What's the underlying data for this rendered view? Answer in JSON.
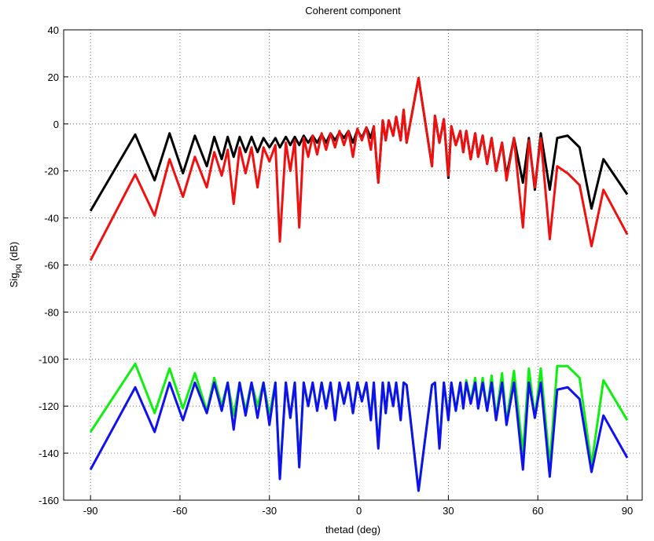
{
  "chart_data": {
    "type": "line",
    "title": "Coherent component",
    "xlabel": "thetad (deg)",
    "ylabel": {
      "text": "Sig",
      "sub": "pq",
      "unit": "(dB)"
    },
    "xlim": [
      -99,
      95
    ],
    "ylim": [
      -160,
      40
    ],
    "xticks": [
      -90,
      -60,
      -30,
      0,
      30,
      60,
      90
    ],
    "yticks": [
      -160,
      -140,
      -120,
      -100,
      -80,
      -60,
      -40,
      -20,
      0,
      20,
      40
    ],
    "grid": true,
    "x": [
      -90,
      -75,
      -68.5,
      -63.5,
      -59,
      -55,
      -51,
      -48.5,
      -46,
      -44,
      -42,
      -40,
      -38,
      -36,
      -34,
      -32,
      -30,
      -28,
      -26.5,
      -24.5,
      -23,
      -21.5,
      -20,
      -18.5,
      -17,
      -15.5,
      -14,
      -12.5,
      -11,
      -9.5,
      -8,
      -6.5,
      -5,
      -3.5,
      -2,
      -0.5,
      1,
      2.5,
      4,
      5,
      6.5,
      8,
      9,
      10,
      11.5,
      12.5,
      14,
      15,
      16,
      20,
      24.5,
      25.5,
      27,
      28.5,
      30,
      31,
      32.5,
      34,
      35,
      36,
      37.5,
      39,
      40,
      41.5,
      43,
      44.5,
      46,
      48,
      49.5,
      52,
      55,
      57,
      59,
      61,
      64,
      66.5,
      70,
      74,
      78,
      82,
      90
    ],
    "series": [
      {
        "color": "#000000",
        "values": [
          -37,
          -4.5,
          -24,
          -4,
          -21,
          -5,
          -18,
          -5.5,
          -15,
          -5.5,
          -14,
          -5.5,
          -12,
          -5.5,
          -12,
          -6,
          -10,
          -6,
          -10,
          -5.5,
          -9,
          -5.5,
          -9,
          -5,
          -8,
          -5,
          -8,
          -4.5,
          -8,
          -4,
          -7,
          -3.5,
          -6,
          -3,
          -8,
          -2.5,
          -6,
          -1.5,
          -6,
          -1,
          -25,
          1.5,
          -7,
          1.5,
          -5,
          3,
          -7,
          6,
          -8,
          19.5,
          -18,
          3.5,
          -8,
          2,
          -23,
          -1,
          -9,
          -3,
          -12,
          -3,
          -15,
          -4,
          -14,
          -5,
          -17,
          -6,
          -20,
          -8,
          -22,
          -6,
          -25,
          -6,
          -28,
          -4,
          -28,
          -6,
          -5,
          -10,
          -36,
          -15,
          -30
        ]
      },
      {
        "color": "#ee1111",
        "values": [
          -58,
          -21.5,
          -39,
          -15,
          -31,
          -14,
          -27,
          -12,
          -22,
          -11,
          -34,
          -10,
          -21,
          -10,
          -27,
          -10,
          -16,
          -9,
          -50,
          -8,
          -20,
          -7,
          -44,
          -6,
          -14,
          -5,
          -13,
          -4,
          -11,
          -4,
          -10,
          -3,
          -9,
          -3,
          -14,
          -2,
          -7,
          -1.5,
          -11,
          -1,
          -25,
          1.5,
          -7,
          1.5,
          -5,
          3,
          -7,
          6,
          -8,
          19.5,
          -18,
          3.5,
          -8,
          2,
          -22,
          -1,
          -9,
          -3,
          -12,
          -3,
          -15,
          -4,
          -14,
          -5,
          -17,
          -6,
          -20,
          -8,
          -24,
          -6,
          -44,
          -7,
          -27,
          -6,
          -49,
          -18,
          -21,
          -26,
          -52,
          -28,
          -47
        ]
      },
      {
        "color": "#11ee11",
        "values": [
          -131,
          -102,
          -123,
          -104,
          -121,
          -106,
          -122,
          -108,
          -120,
          -110,
          -124,
          -110,
          -122,
          -110,
          -120,
          -110,
          -124,
          -110,
          -150,
          -110,
          -125,
          -110,
          -145,
          -110,
          -120,
          -110,
          -122,
          -110,
          -120,
          -110,
          -125,
          -110,
          -119,
          -110,
          -123,
          -110,
          -118,
          -110,
          -125,
          -110,
          -137,
          -110,
          -123,
          -110,
          -120,
          -110,
          -125,
          -110,
          -111,
          -156,
          -111,
          -110,
          -137,
          -110,
          -125,
          -110,
          -122,
          -110,
          -120,
          -109,
          -118,
          -108,
          -121,
          -108,
          -122,
          -107,
          -125,
          -106,
          -127,
          -105,
          -140,
          -104,
          -125,
          -104,
          -145,
          -103,
          -103,
          -108,
          -145,
          -109,
          -126
        ]
      },
      {
        "color": "#1111ee",
        "values": [
          -147,
          -112,
          -131,
          -110,
          -126,
          -110,
          -123,
          -110,
          -122,
          -110,
          -130,
          -110,
          -124,
          -110,
          -125,
          -110,
          -128,
          -110,
          -151,
          -110,
          -125,
          -110,
          -146,
          -110,
          -120,
          -110,
          -122,
          -110,
          -121,
          -110,
          -126,
          -110,
          -119,
          -110,
          -123,
          -110,
          -118,
          -110,
          -126,
          -110,
          -138,
          -110,
          -123,
          -110,
          -120,
          -110,
          -126,
          -110,
          -111,
          -156,
          -111,
          -110,
          -138,
          -110,
          -126,
          -110,
          -122,
          -110,
          -121,
          -110,
          -119,
          -110,
          -121,
          -110,
          -122,
          -110,
          -126,
          -110,
          -128,
          -110,
          -147,
          -110,
          -125,
          -110,
          -150,
          -113,
          -112,
          -117,
          -148,
          -124,
          -142
        ]
      }
    ]
  }
}
